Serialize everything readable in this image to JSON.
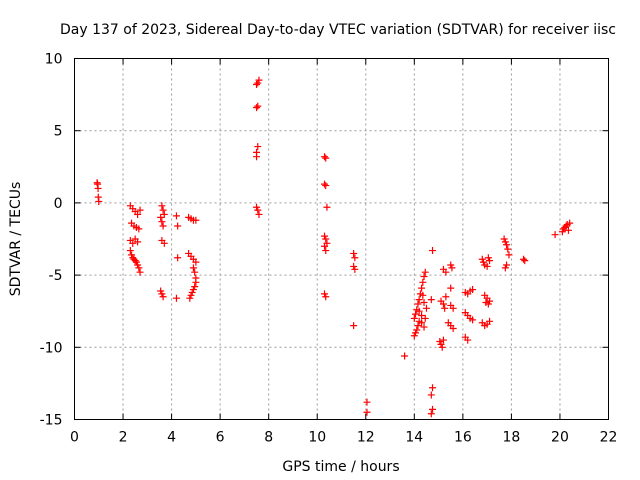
{
  "chart_data": {
    "type": "scatter",
    "title": "Day 137 of 2023, Sidereal Day-to-day VTEC variation (SDTVAR) for receiver iisc",
    "xlabel": "GPS time / hours",
    "ylabel": "SDTVAR / TECUs",
    "xlim": [
      0,
      22
    ],
    "ylim": [
      -15,
      10
    ],
    "x_ticks": [
      0,
      2,
      4,
      6,
      8,
      10,
      12,
      14,
      16,
      18,
      20,
      22
    ],
    "y_ticks": [
      10,
      5,
      0,
      -5,
      -10,
      -15
    ],
    "x_tick_labels": [
      "0",
      "2",
      "4",
      "6",
      "8",
      "10",
      "12",
      "14",
      "16",
      "18",
      "20",
      "22"
    ],
    "y_tick_labels": [
      "10",
      "5",
      "0",
      "-5",
      "-10",
      "-15"
    ],
    "grid": true,
    "marker": "plus",
    "color": "#ff0000",
    "series": [
      {
        "name": "SDTVAR",
        "points": [
          [
            0.95,
            1.3
          ],
          [
            0.97,
            1.0
          ],
          [
            0.98,
            0.4
          ],
          [
            1.0,
            0.1
          ],
          [
            0.93,
            1.4
          ],
          [
            2.3,
            -0.2
          ],
          [
            2.4,
            -0.4
          ],
          [
            2.5,
            -0.6
          ],
          [
            2.6,
            -0.8
          ],
          [
            2.7,
            -0.5
          ],
          [
            2.35,
            -1.4
          ],
          [
            2.45,
            -1.6
          ],
          [
            2.55,
            -1.7
          ],
          [
            2.65,
            -1.8
          ],
          [
            2.3,
            -2.6
          ],
          [
            2.4,
            -2.8
          ],
          [
            2.5,
            -2.5
          ],
          [
            2.6,
            -2.7
          ],
          [
            2.3,
            -3.3
          ],
          [
            2.35,
            -3.6
          ],
          [
            2.4,
            -3.8
          ],
          [
            2.45,
            -3.9
          ],
          [
            2.5,
            -4.0
          ],
          [
            2.55,
            -4.1
          ],
          [
            2.6,
            -4.3
          ],
          [
            2.65,
            -4.5
          ],
          [
            2.7,
            -4.8
          ],
          [
            3.6,
            -0.2
          ],
          [
            3.65,
            -0.5
          ],
          [
            3.7,
            -0.8
          ],
          [
            3.55,
            -1.0
          ],
          [
            3.6,
            -1.3
          ],
          [
            3.65,
            -1.6
          ],
          [
            3.6,
            -2.6
          ],
          [
            3.7,
            -2.8
          ],
          [
            3.55,
            -6.1
          ],
          [
            3.6,
            -6.3
          ],
          [
            3.65,
            -6.5
          ],
          [
            4.2,
            -0.9
          ],
          [
            4.25,
            -1.6
          ],
          [
            4.25,
            -3.8
          ],
          [
            4.2,
            -6.6
          ],
          [
            4.7,
            -1.0
          ],
          [
            4.8,
            -1.1
          ],
          [
            4.9,
            -1.2
          ],
          [
            5.0,
            -1.2
          ],
          [
            4.7,
            -3.5
          ],
          [
            4.8,
            -3.7
          ],
          [
            4.9,
            -3.9
          ],
          [
            5.0,
            -4.1
          ],
          [
            4.9,
            -4.5
          ],
          [
            4.95,
            -4.8
          ],
          [
            5.0,
            -5.2
          ],
          [
            5.0,
            -5.5
          ],
          [
            4.95,
            -5.8
          ],
          [
            4.9,
            -6.0
          ],
          [
            4.85,
            -6.2
          ],
          [
            4.8,
            -6.4
          ],
          [
            4.75,
            -6.6
          ],
          [
            7.5,
            8.2
          ],
          [
            7.55,
            8.3
          ],
          [
            7.6,
            8.5
          ],
          [
            7.5,
            6.6
          ],
          [
            7.55,
            6.7
          ],
          [
            7.55,
            3.9
          ],
          [
            7.5,
            3.5
          ],
          [
            7.5,
            3.2
          ],
          [
            7.5,
            -0.3
          ],
          [
            7.55,
            -0.5
          ],
          [
            7.6,
            -0.8
          ],
          [
            10.3,
            3.2
          ],
          [
            10.35,
            3.1
          ],
          [
            10.3,
            1.3
          ],
          [
            10.35,
            1.2
          ],
          [
            10.4,
            -0.3
          ],
          [
            10.3,
            -2.3
          ],
          [
            10.35,
            -2.5
          ],
          [
            10.4,
            -2.8
          ],
          [
            10.3,
            -3.0
          ],
          [
            10.35,
            -3.3
          ],
          [
            10.3,
            -6.3
          ],
          [
            10.35,
            -6.5
          ],
          [
            11.5,
            -3.5
          ],
          [
            11.55,
            -3.8
          ],
          [
            11.5,
            -4.4
          ],
          [
            11.55,
            -4.6
          ],
          [
            11.5,
            -8.5
          ],
          [
            12.05,
            -13.8
          ],
          [
            12.05,
            -14.5
          ],
          [
            13.6,
            -10.6
          ],
          [
            14.0,
            -9.2
          ],
          [
            14.05,
            -9.0
          ],
          [
            14.1,
            -8.8
          ],
          [
            14.15,
            -8.5
          ],
          [
            14.2,
            -8.2
          ],
          [
            14.0,
            -8.0
          ],
          [
            14.05,
            -7.7
          ],
          [
            14.1,
            -7.4
          ],
          [
            14.15,
            -7.0
          ],
          [
            14.2,
            -6.7
          ],
          [
            14.25,
            -6.3
          ],
          [
            14.3,
            -5.9
          ],
          [
            14.35,
            -5.5
          ],
          [
            14.4,
            -5.1
          ],
          [
            14.45,
            -4.8
          ],
          [
            14.2,
            -7.5
          ],
          [
            14.3,
            -8.3
          ],
          [
            14.4,
            -8.6
          ],
          [
            14.45,
            -8.0
          ],
          [
            14.5,
            -7.3
          ],
          [
            14.4,
            -6.9
          ],
          [
            14.35,
            -6.4
          ],
          [
            14.3,
            -7.8
          ],
          [
            14.75,
            -3.3
          ],
          [
            14.7,
            -6.7
          ],
          [
            14.75,
            -12.8
          ],
          [
            14.7,
            -13.3
          ],
          [
            14.75,
            -14.3
          ],
          [
            14.7,
            -14.6
          ],
          [
            15.2,
            -4.6
          ],
          [
            15.3,
            -4.8
          ],
          [
            15.5,
            -4.3
          ],
          [
            15.55,
            -4.5
          ],
          [
            15.5,
            -5.9
          ],
          [
            15.1,
            -6.8
          ],
          [
            15.2,
            -7.0
          ],
          [
            15.25,
            -7.3
          ],
          [
            15.3,
            -6.5
          ],
          [
            15.5,
            -7.1
          ],
          [
            15.6,
            -7.3
          ],
          [
            15.05,
            -9.6
          ],
          [
            15.1,
            -9.8
          ],
          [
            15.15,
            -10.0
          ],
          [
            15.2,
            -9.5
          ],
          [
            15.5,
            -8.5
          ],
          [
            15.6,
            -8.7
          ],
          [
            15.4,
            -8.3
          ],
          [
            16.1,
            -6.2
          ],
          [
            16.2,
            -6.3
          ],
          [
            16.3,
            -6.1
          ],
          [
            16.4,
            -6.0
          ],
          [
            16.1,
            -7.6
          ],
          [
            16.2,
            -7.8
          ],
          [
            16.3,
            -8.0
          ],
          [
            16.4,
            -8.1
          ],
          [
            16.1,
            -9.3
          ],
          [
            16.2,
            -9.5
          ],
          [
            16.8,
            -3.9
          ],
          [
            16.85,
            -4.1
          ],
          [
            16.9,
            -4.3
          ],
          [
            17.0,
            -4.4
          ],
          [
            17.05,
            -3.8
          ],
          [
            17.1,
            -4.0
          ],
          [
            16.9,
            -6.4
          ],
          [
            17.0,
            -6.6
          ],
          [
            16.95,
            -6.9
          ],
          [
            17.05,
            -7.0
          ],
          [
            17.1,
            -6.8
          ],
          [
            16.8,
            -8.3
          ],
          [
            16.9,
            -8.5
          ],
          [
            17.0,
            -8.4
          ],
          [
            17.1,
            -8.2
          ],
          [
            17.7,
            -2.5
          ],
          [
            17.75,
            -2.7
          ],
          [
            17.8,
            -2.9
          ],
          [
            17.85,
            -3.2
          ],
          [
            17.9,
            -3.6
          ],
          [
            17.8,
            -4.3
          ],
          [
            17.75,
            -4.5
          ],
          [
            18.5,
            -3.9
          ],
          [
            18.55,
            -4.0
          ],
          [
            19.8,
            -2.2
          ],
          [
            20.1,
            -2.0
          ],
          [
            20.15,
            -1.8
          ],
          [
            20.2,
            -1.7
          ],
          [
            20.25,
            -1.6
          ],
          [
            20.3,
            -1.5
          ],
          [
            20.4,
            -1.4
          ],
          [
            20.35,
            -1.9
          ]
        ]
      }
    ]
  }
}
